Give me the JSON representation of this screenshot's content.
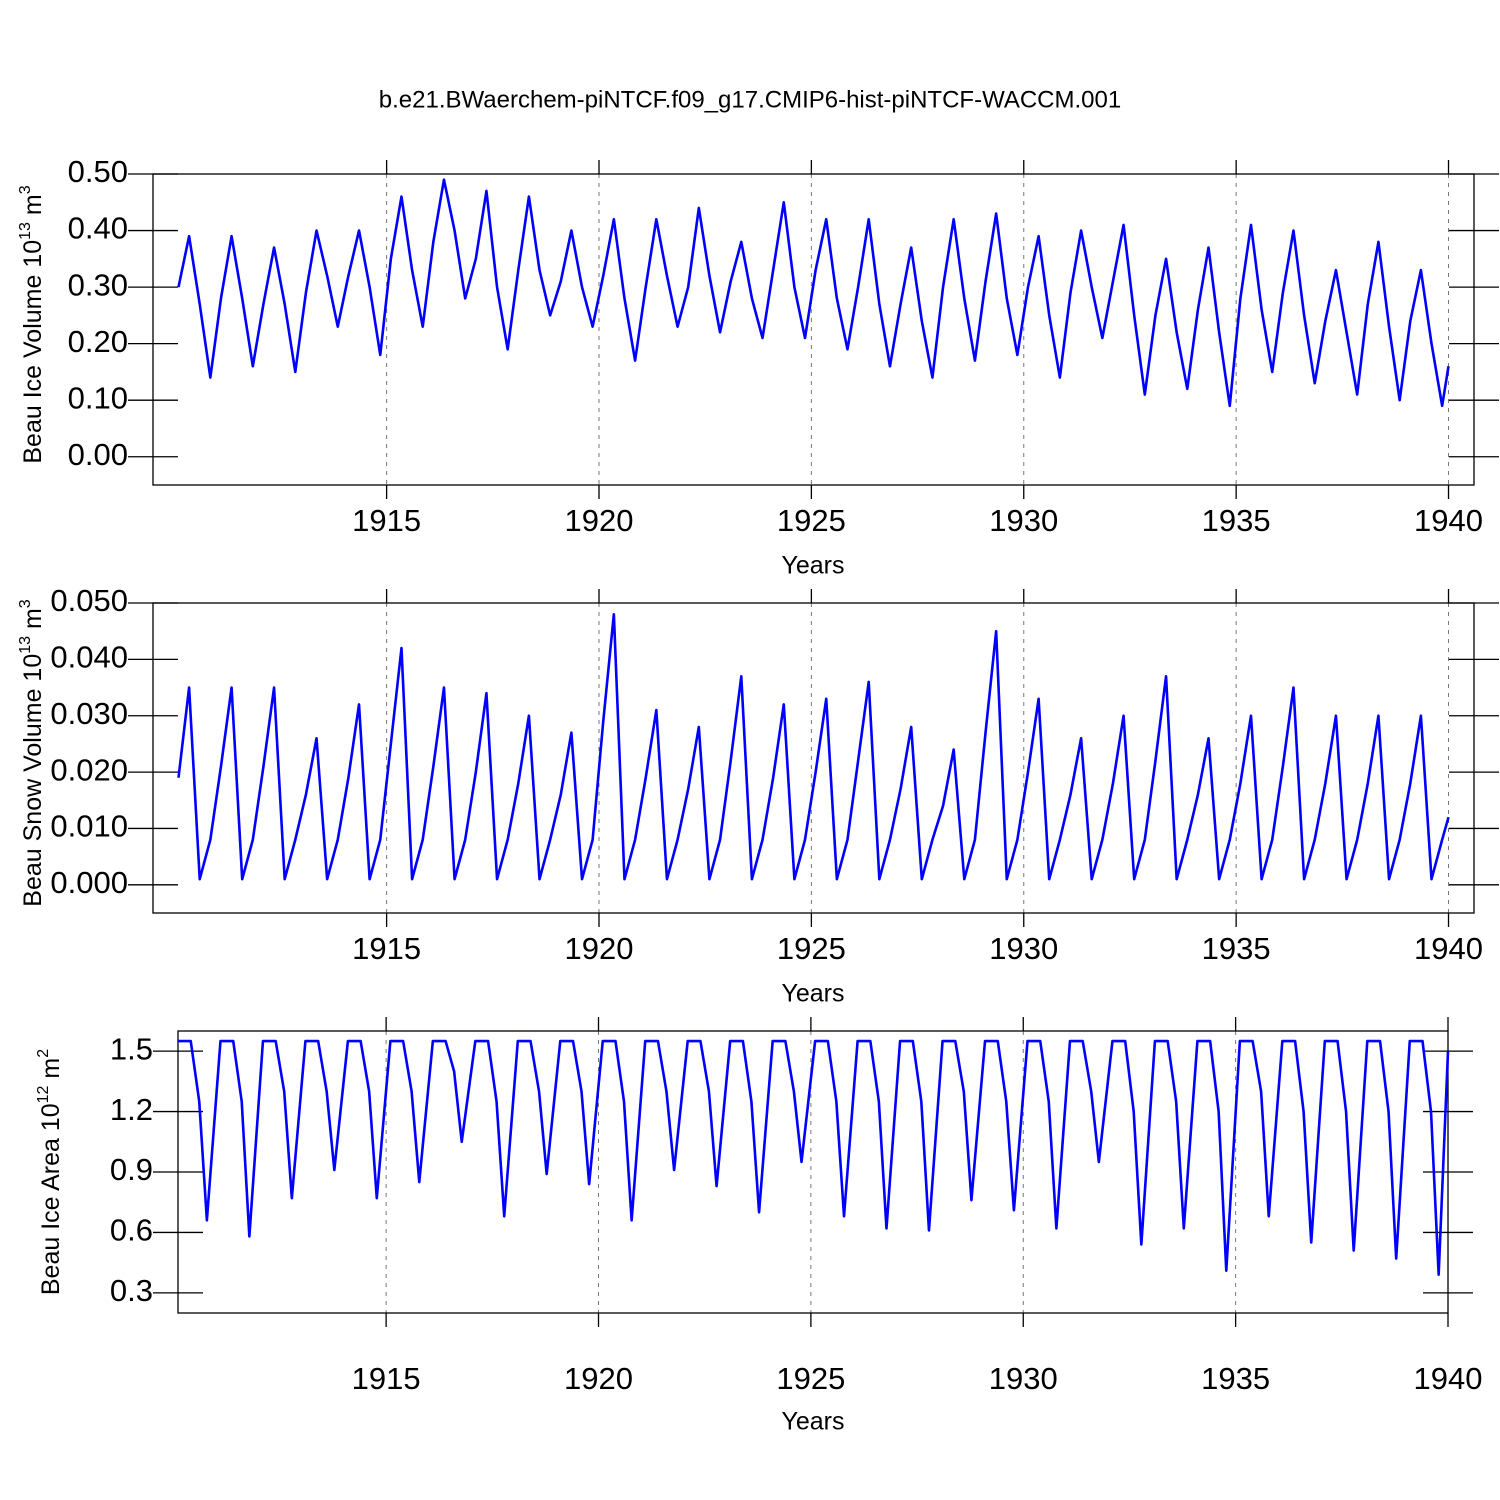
{
  "title": "b.e21.BWaerchem-piNTCF.f09_g17.CMIP6-hist-piNTCF-WACCM.001",
  "chart_data": [
    {
      "type": "line",
      "xlabel": "Years",
      "ylabel": [
        "Beau Ice Volume 10",
        "13",
        " m",
        "3"
      ],
      "color": "#0000ff",
      "xlim": [
        1909.5,
        1940.6
      ],
      "ylim": [
        -0.05,
        0.5
      ],
      "xticks": [
        1915,
        1920,
        1925,
        1930,
        1935,
        1940
      ],
      "yticks": [
        {
          "value": 0,
          "label": "0.00"
        },
        {
          "value": 0.1,
          "label": "0.10"
        },
        {
          "value": 0.2,
          "label": "0.20"
        },
        {
          "value": 0.3,
          "label": "0.30"
        },
        {
          "value": 0.4,
          "label": "0.40"
        },
        {
          "value": 0.5,
          "label": "0.50"
        }
      ],
      "grid": "x-dashed",
      "x": [
        1910.1,
        1910.35,
        1910.6,
        1910.85,
        1911.1,
        1911.35,
        1911.6,
        1911.85,
        1912.1,
        1912.35,
        1912.6,
        1912.85,
        1913.1,
        1913.35,
        1913.6,
        1913.85,
        1914.1,
        1914.35,
        1914.6,
        1914.85,
        1915.1,
        1915.35,
        1915.6,
        1915.85,
        1916.1,
        1916.35,
        1916.6,
        1916.85,
        1917.1,
        1917.35,
        1917.6,
        1917.85,
        1918.1,
        1918.35,
        1918.6,
        1918.85,
        1919.1,
        1919.35,
        1919.6,
        1919.85,
        1920.1,
        1920.35,
        1920.6,
        1920.85,
        1921.1,
        1921.35,
        1921.6,
        1921.85,
        1922.1,
        1922.35,
        1922.6,
        1922.85,
        1923.1,
        1923.35,
        1923.6,
        1923.85,
        1924.1,
        1924.35,
        1924.6,
        1924.85,
        1925.1,
        1925.35,
        1925.6,
        1925.85,
        1926.1,
        1926.35,
        1926.6,
        1926.85,
        1927.1,
        1927.35,
        1927.6,
        1927.85,
        1928.1,
        1928.35,
        1928.6,
        1928.85,
        1929.1,
        1929.35,
        1929.6,
        1929.85,
        1930.1,
        1930.35,
        1930.6,
        1930.85,
        1931.1,
        1931.35,
        1931.6,
        1931.85,
        1932.1,
        1932.35,
        1932.6,
        1932.85,
        1933.1,
        1933.35,
        1933.6,
        1933.85,
        1934.1,
        1934.35,
        1934.6,
        1934.85,
        1935.1,
        1935.35,
        1935.6,
        1935.85,
        1936.1,
        1936.35,
        1936.6,
        1936.85,
        1937.1,
        1937.35,
        1937.6,
        1937.85,
        1938.1,
        1938.35,
        1938.6,
        1938.85,
        1939.1,
        1939.35,
        1939.6,
        1939.85,
        1940.0
      ],
      "values": [
        0.3,
        0.39,
        0.27,
        0.14,
        0.28,
        0.39,
        0.28,
        0.16,
        0.27,
        0.37,
        0.27,
        0.15,
        0.29,
        0.4,
        0.32,
        0.23,
        0.32,
        0.4,
        0.3,
        0.18,
        0.35,
        0.46,
        0.33,
        0.23,
        0.38,
        0.49,
        0.4,
        0.28,
        0.35,
        0.47,
        0.3,
        0.19,
        0.33,
        0.46,
        0.33,
        0.25,
        0.31,
        0.4,
        0.3,
        0.23,
        0.32,
        0.42,
        0.28,
        0.17,
        0.3,
        0.42,
        0.32,
        0.23,
        0.3,
        0.44,
        0.32,
        0.22,
        0.31,
        0.38,
        0.28,
        0.21,
        0.33,
        0.45,
        0.3,
        0.21,
        0.33,
        0.42,
        0.28,
        0.19,
        0.3,
        0.42,
        0.27,
        0.16,
        0.27,
        0.37,
        0.24,
        0.14,
        0.3,
        0.42,
        0.28,
        0.17,
        0.31,
        0.43,
        0.28,
        0.18,
        0.3,
        0.39,
        0.25,
        0.14,
        0.29,
        0.4,
        0.3,
        0.21,
        0.31,
        0.41,
        0.25,
        0.11,
        0.25,
        0.35,
        0.22,
        0.12,
        0.26,
        0.37,
        0.22,
        0.09,
        0.28,
        0.41,
        0.26,
        0.15,
        0.29,
        0.4,
        0.25,
        0.13,
        0.24,
        0.33,
        0.22,
        0.11,
        0.27,
        0.38,
        0.23,
        0.1,
        0.24,
        0.33,
        0.2,
        0.09,
        0.16
      ]
    },
    {
      "type": "line",
      "xlabel": "Years",
      "ylabel": [
        "Beau Snow Volume 10",
        "13",
        " m",
        "3"
      ],
      "color": "#0000ff",
      "xlim": [
        1909.5,
        1940.6
      ],
      "ylim": [
        -0.005,
        0.05
      ],
      "xticks": [
        1915,
        1920,
        1925,
        1930,
        1935,
        1940
      ],
      "yticks": [
        {
          "value": 0,
          "label": "0.000"
        },
        {
          "value": 0.01,
          "label": "0.010"
        },
        {
          "value": 0.02,
          "label": "0.020"
        },
        {
          "value": 0.03,
          "label": "0.030"
        },
        {
          "value": 0.04,
          "label": "0.040"
        },
        {
          "value": 0.05,
          "label": "0.050"
        }
      ],
      "grid": "x-dashed",
      "x": [
        1910.1,
        1910.35,
        1910.6,
        1910.85,
        1911.1,
        1911.35,
        1911.6,
        1911.85,
        1912.1,
        1912.35,
        1912.6,
        1912.85,
        1913.1,
        1913.35,
        1913.6,
        1913.85,
        1914.1,
        1914.35,
        1914.6,
        1914.85,
        1915.1,
        1915.35,
        1915.6,
        1915.85,
        1916.1,
        1916.35,
        1916.6,
        1916.85,
        1917.1,
        1917.35,
        1917.6,
        1917.85,
        1918.1,
        1918.35,
        1918.6,
        1918.85,
        1919.1,
        1919.35,
        1919.6,
        1919.85,
        1920.1,
        1920.35,
        1920.6,
        1920.85,
        1921.1,
        1921.35,
        1921.6,
        1921.85,
        1922.1,
        1922.35,
        1922.6,
        1922.85,
        1923.1,
        1923.35,
        1923.6,
        1923.85,
        1924.1,
        1924.35,
        1924.6,
        1924.85,
        1925.1,
        1925.35,
        1925.6,
        1925.85,
        1926.1,
        1926.35,
        1926.6,
        1926.85,
        1927.1,
        1927.35,
        1927.6,
        1927.85,
        1928.1,
        1928.35,
        1928.6,
        1928.85,
        1929.1,
        1929.35,
        1929.6,
        1929.85,
        1930.1,
        1930.35,
        1930.6,
        1930.85,
        1931.1,
        1931.35,
        1931.6,
        1931.85,
        1932.1,
        1932.35,
        1932.6,
        1932.85,
        1933.1,
        1933.35,
        1933.6,
        1933.85,
        1934.1,
        1934.35,
        1934.6,
        1934.85,
        1935.1,
        1935.35,
        1935.6,
        1935.85,
        1936.1,
        1936.35,
        1936.6,
        1936.85,
        1937.1,
        1937.35,
        1937.6,
        1937.85,
        1938.1,
        1938.35,
        1938.6,
        1938.85,
        1939.1,
        1939.35,
        1939.6,
        1939.85,
        1940.0
      ],
      "values": [
        0.019,
        0.035,
        0.001,
        0.008,
        0.021,
        0.035,
        0.001,
        0.008,
        0.021,
        0.035,
        0.001,
        0.008,
        0.016,
        0.026,
        0.001,
        0.008,
        0.019,
        0.032,
        0.001,
        0.008,
        0.025,
        0.042,
        0.001,
        0.008,
        0.021,
        0.035,
        0.001,
        0.008,
        0.02,
        0.034,
        0.001,
        0.008,
        0.018,
        0.03,
        0.001,
        0.008,
        0.016,
        0.027,
        0.001,
        0.008,
        0.029,
        0.048,
        0.001,
        0.008,
        0.019,
        0.031,
        0.001,
        0.008,
        0.017,
        0.028,
        0.001,
        0.008,
        0.022,
        0.037,
        0.001,
        0.008,
        0.019,
        0.032,
        0.001,
        0.008,
        0.02,
        0.033,
        0.001,
        0.008,
        0.022,
        0.036,
        0.001,
        0.008,
        0.017,
        0.028,
        0.001,
        0.008,
        0.014,
        0.024,
        0.001,
        0.008,
        0.027,
        0.045,
        0.001,
        0.008,
        0.02,
        0.033,
        0.001,
        0.008,
        0.016,
        0.026,
        0.001,
        0.008,
        0.018,
        0.03,
        0.001,
        0.008,
        0.022,
        0.037,
        0.001,
        0.008,
        0.016,
        0.026,
        0.001,
        0.008,
        0.018,
        0.03,
        0.001,
        0.008,
        0.021,
        0.035,
        0.001,
        0.008,
        0.018,
        0.03,
        0.001,
        0.008,
        0.018,
        0.03,
        0.001,
        0.008,
        0.018,
        0.03,
        0.001,
        0.008,
        0.012
      ]
    },
    {
      "type": "line",
      "xlabel": "Years",
      "ylabel": [
        "Beau Ice Area 10",
        "12",
        " m",
        "2"
      ],
      "color": "#0000ff",
      "xlim": [
        1910.1,
        1940
      ],
      "ylim": [
        0.2,
        1.6
      ],
      "xticks": [
        1915,
        1920,
        1925,
        1930,
        1935,
        1940
      ],
      "yticks": [
        0.3,
        0.6,
        0.9,
        1.2,
        1.5
      ],
      "grid": "x-dashed",
      "x": [
        1910.1,
        1910.4,
        1910.6,
        1910.78,
        1911.1,
        1911.4,
        1911.6,
        1911.78,
        1912.1,
        1912.4,
        1912.6,
        1912.78,
        1913.1,
        1913.4,
        1913.6,
        1913.78,
        1914.1,
        1914.4,
        1914.6,
        1914.78,
        1915.1,
        1915.4,
        1915.6,
        1915.78,
        1916.1,
        1916.4,
        1916.6,
        1916.78,
        1917.1,
        1917.4,
        1917.6,
        1917.78,
        1918.1,
        1918.4,
        1918.6,
        1918.78,
        1919.1,
        1919.4,
        1919.6,
        1919.78,
        1920.1,
        1920.4,
        1920.6,
        1920.78,
        1921.1,
        1921.4,
        1921.6,
        1921.78,
        1922.1,
        1922.4,
        1922.6,
        1922.78,
        1923.1,
        1923.4,
        1923.6,
        1923.78,
        1924.1,
        1924.4,
        1924.6,
        1924.78,
        1925.1,
        1925.4,
        1925.6,
        1925.78,
        1926.1,
        1926.4,
        1926.6,
        1926.78,
        1927.1,
        1927.4,
        1927.6,
        1927.78,
        1928.1,
        1928.4,
        1928.6,
        1928.78,
        1929.1,
        1929.4,
        1929.6,
        1929.78,
        1930.1,
        1930.4,
        1930.6,
        1930.78,
        1931.1,
        1931.4,
        1931.6,
        1931.78,
        1932.1,
        1932.4,
        1932.6,
        1932.78,
        1933.1,
        1933.4,
        1933.6,
        1933.78,
        1934.1,
        1934.4,
        1934.6,
        1934.78,
        1935.1,
        1935.4,
        1935.6,
        1935.78,
        1936.1,
        1936.4,
        1936.6,
        1936.78,
        1937.1,
        1937.4,
        1937.6,
        1937.78,
        1938.1,
        1938.4,
        1938.6,
        1938.78,
        1939.1,
        1939.4,
        1939.6,
        1939.78,
        1940.0
      ],
      "values": [
        1.55,
        1.55,
        1.25,
        0.66,
        1.55,
        1.55,
        1.25,
        0.58,
        1.55,
        1.55,
        1.3,
        0.77,
        1.55,
        1.55,
        1.3,
        0.91,
        1.55,
        1.55,
        1.3,
        0.77,
        1.55,
        1.55,
        1.3,
        0.85,
        1.55,
        1.55,
        1.4,
        1.05,
        1.55,
        1.55,
        1.25,
        0.68,
        1.55,
        1.55,
        1.3,
        0.89,
        1.55,
        1.55,
        1.3,
        0.84,
        1.55,
        1.55,
        1.25,
        0.66,
        1.55,
        1.55,
        1.3,
        0.91,
        1.55,
        1.55,
        1.3,
        0.83,
        1.55,
        1.55,
        1.25,
        0.7,
        1.55,
        1.55,
        1.3,
        0.95,
        1.55,
        1.55,
        1.25,
        0.68,
        1.55,
        1.55,
        1.25,
        0.62,
        1.55,
        1.55,
        1.25,
        0.61,
        1.55,
        1.55,
        1.3,
        0.76,
        1.55,
        1.55,
        1.25,
        0.71,
        1.55,
        1.55,
        1.25,
        0.62,
        1.55,
        1.55,
        1.3,
        0.95,
        1.55,
        1.55,
        1.2,
        0.54,
        1.55,
        1.55,
        1.25,
        0.62,
        1.55,
        1.55,
        1.2,
        0.41,
        1.55,
        1.55,
        1.3,
        0.68,
        1.55,
        1.55,
        1.2,
        0.55,
        1.55,
        1.55,
        1.2,
        0.51,
        1.55,
        1.55,
        1.2,
        0.47,
        1.55,
        1.55,
        1.2,
        0.39,
        1.5
      ]
    }
  ]
}
